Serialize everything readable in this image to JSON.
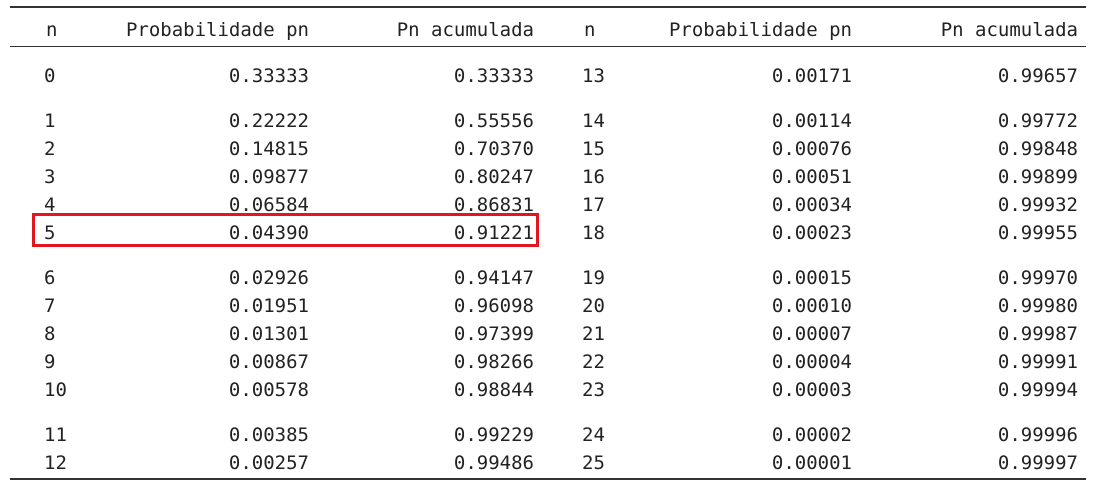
{
  "table": {
    "headers": [
      "n",
      "Probabilidade pn",
      "Pn acumulada",
      "n",
      "Probabilidade pn",
      "Pn acumulada"
    ],
    "rows": [
      [
        "0",
        "0.33333",
        "0.33333",
        "13",
        "0.00171",
        "0.99657"
      ],
      [
        "1",
        "0.22222",
        "0.55556",
        "14",
        "0.00114",
        "0.99772"
      ],
      [
        "2",
        "0.14815",
        "0.70370",
        "15",
        "0.00076",
        "0.99848"
      ],
      [
        "3",
        "0.09877",
        "0.80247",
        "16",
        "0.00051",
        "0.99899"
      ],
      [
        "4",
        "0.06584",
        "0.86831",
        "17",
        "0.00034",
        "0.99932"
      ],
      [
        "5",
        "0.04390",
        "0.91221",
        "18",
        "0.00023",
        "0.99955"
      ],
      [
        "6",
        "0.02926",
        "0.94147",
        "19",
        "0.00015",
        "0.99970"
      ],
      [
        "7",
        "0.01951",
        "0.96098",
        "20",
        "0.00010",
        "0.99980"
      ],
      [
        "8",
        "0.01301",
        "0.97399",
        "21",
        "0.00007",
        "0.99987"
      ],
      [
        "9",
        "0.00867",
        "0.98266",
        "22",
        "0.00004",
        "0.99991"
      ],
      [
        "10",
        "0.00578",
        "0.98844",
        "23",
        "0.00003",
        "0.99994"
      ],
      [
        "11",
        "0.00385",
        "0.99229",
        "24",
        "0.00002",
        "0.99996"
      ],
      [
        "12",
        "0.00257",
        "0.99486",
        "25",
        "0.00001",
        "0.99997"
      ]
    ],
    "highlight_color": "#e2161f",
    "highlighted_row_n": "5"
  }
}
